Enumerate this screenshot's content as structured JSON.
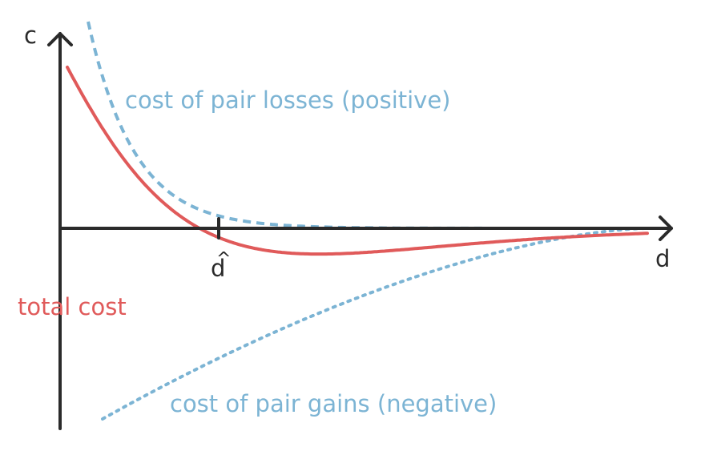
{
  "axes": {
    "y_label": "c",
    "x_label": "d",
    "x_marker_label": "d",
    "x_marker_accent": "^"
  },
  "curves": {
    "losses": {
      "label": "cost of pair losses (positive)",
      "color": "#7cb4d4",
      "style": "dashed"
    },
    "gains": {
      "label": "cost of pair gains (negative)",
      "color": "#7cb4d4",
      "style": "dotted"
    },
    "total": {
      "label": "total cost",
      "color": "#e05a5a",
      "style": "solid"
    }
  },
  "colors": {
    "axis": "#2a2a2a"
  }
}
